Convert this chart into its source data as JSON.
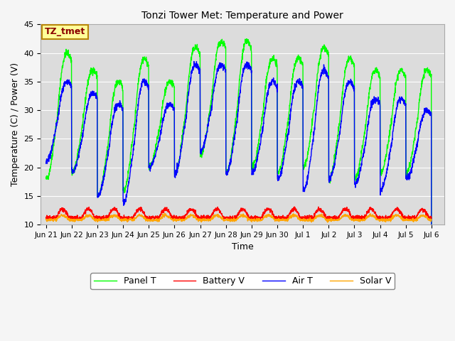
{
  "title": "Tonzi Tower Met: Temperature and Power",
  "xlabel": "Time",
  "ylabel": "Temperature (C) / Power (V)",
  "ylim": [
    10,
    45
  ],
  "panel_t_color": "#00ff00",
  "battery_v_color": "#ff0000",
  "air_t_color": "#0000ff",
  "solar_v_color": "#ffa500",
  "legend_labels": [
    "Panel T",
    "Battery V",
    "Air T",
    "Solar V"
  ],
  "annotation_text": "TZ_tmet",
  "annotation_color": "#8b0000",
  "annotation_bg": "#ffff99",
  "annotation_border": "#b8860b",
  "xtick_labels": [
    "Jun 21",
    "Jun 22",
    "Jun 23",
    "Jun 24",
    "Jun 25",
    "Jun 26",
    "Jun 27",
    "Jun 28",
    "Jun 29",
    "Jun 30",
    "Jul 1",
    "Jul 2",
    "Jul 3",
    "Jul 4",
    "Jul 5",
    "Jul 6"
  ],
  "grid_color": "#ffffff",
  "plot_bg": "#dcdcdc",
  "fig_bg": "#f5f5f5"
}
